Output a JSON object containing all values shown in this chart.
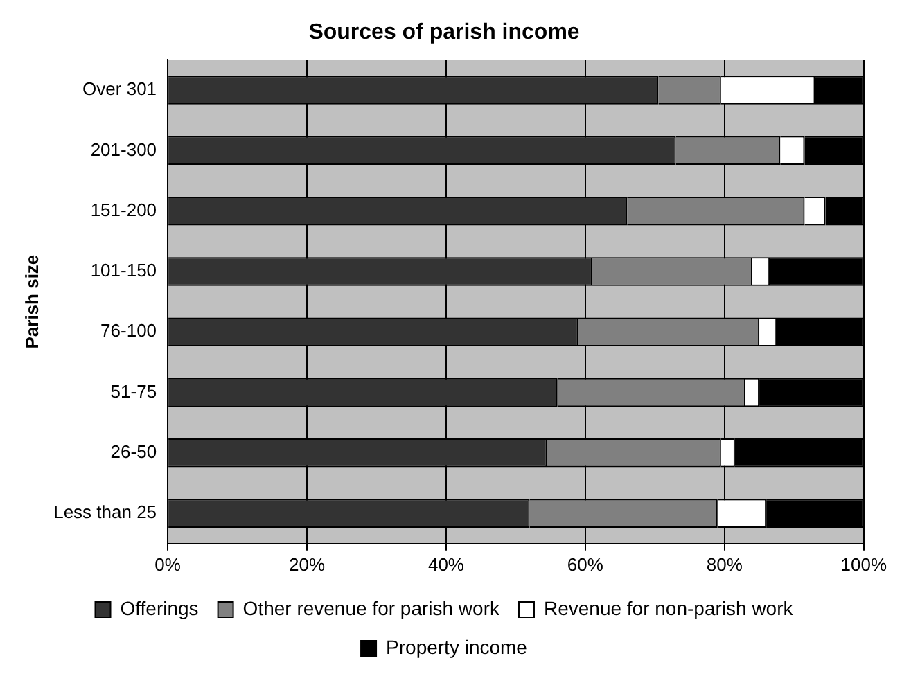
{
  "chart_data": {
    "type": "bar",
    "title": "Sources of parish income",
    "ylabel": "Parish size",
    "orientation": "horizontal",
    "stacked": true,
    "categories": [
      "Over 301",
      "201-300",
      "151-200",
      "101-150",
      "76-100",
      "51-75",
      "26-50",
      "Less than 25"
    ],
    "series": [
      {
        "name": "Offerings",
        "color": "#333333",
        "values": [
          70.5,
          73,
          66,
          61,
          59,
          56,
          54.5,
          52
        ]
      },
      {
        "name": "Other revenue for parish work",
        "color": "#808080",
        "values": [
          9,
          15,
          25.5,
          23,
          26,
          27,
          25,
          27
        ]
      },
      {
        "name": "Revenue for non-parish work",
        "color": "#ffffff",
        "values": [
          13.5,
          3.5,
          3,
          2.5,
          2.5,
          2,
          2,
          7
        ]
      },
      {
        "name": "Property income",
        "color": "#000000",
        "values": [
          7,
          8.5,
          5.5,
          13.5,
          12.5,
          15,
          18.5,
          14
        ]
      }
    ],
    "xlim": [
      0,
      100
    ],
    "xticks": [
      {
        "value": 0,
        "label": "0%"
      },
      {
        "value": 20,
        "label": "20%"
      },
      {
        "value": 40,
        "label": "40%"
      },
      {
        "value": 60,
        "label": "60%"
      },
      {
        "value": 80,
        "label": "80%"
      },
      {
        "value": 100,
        "label": "100%"
      }
    ],
    "grid": "x",
    "legend": "bottom"
  }
}
